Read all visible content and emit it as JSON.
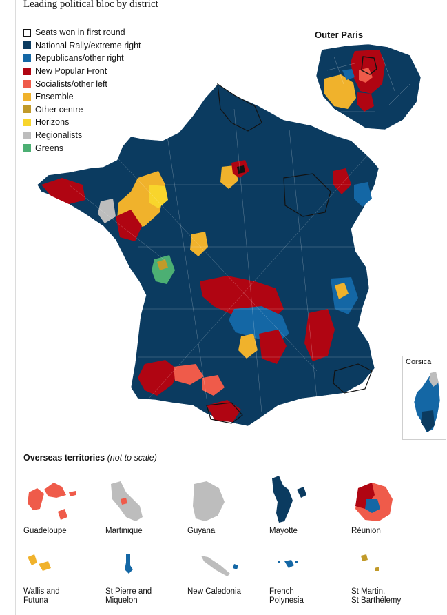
{
  "title": "Leading political bloc by district",
  "colors": {
    "first_round": "#ffffff",
    "national_rally": "#0b3b60",
    "republicans": "#1467a5",
    "new_popular_front": "#b00512",
    "socialists": "#ef5b4a",
    "ensemble": "#f0b22c",
    "other_centre": "#c19a2a",
    "horizons": "#f8d52c",
    "regionalists": "#bdbdbd",
    "greens": "#4caf73",
    "border": "#121212"
  },
  "legend": [
    {
      "label": "Seats won in first round",
      "color": "#ffffff",
      "outline": true
    },
    {
      "label": "National Rally/extreme right",
      "color": "#0b3b60"
    },
    {
      "label": "Republicans/other right",
      "color": "#1467a5"
    },
    {
      "label": "New Popular Front",
      "color": "#b00512"
    },
    {
      "label": "Socialists/other left",
      "color": "#ef5b4a"
    },
    {
      "label": "Ensemble",
      "color": "#f0b22c"
    },
    {
      "label": "Other centre",
      "color": "#c19a2a"
    },
    {
      "label": "Horizons",
      "color": "#f8d52c"
    },
    {
      "label": "Regionalists",
      "color": "#bdbdbd"
    },
    {
      "label": "Greens",
      "color": "#4caf73"
    }
  ],
  "outer_paris_title": "Outer Paris",
  "corsica_label": "Corsica",
  "overseas": {
    "title": "Overseas territories",
    "note": "(not to scale)",
    "territories": [
      {
        "name": "Guadeloupe",
        "color": "#ef5b4a"
      },
      {
        "name": "Martinique",
        "color": "#bdbdbd"
      },
      {
        "name": "Guyana",
        "color": "#bdbdbd"
      },
      {
        "name": "Mayotte",
        "color": "#0b3b60"
      },
      {
        "name": "Réunion",
        "color": "#ef5b4a"
      },
      {
        "name": "Wallis and\nFutuna",
        "color": "#f0b22c"
      },
      {
        "name": "St Pierre and\nMiquelon",
        "color": "#1467a5"
      },
      {
        "name": "New Caledonia",
        "color": "#bdbdbd"
      },
      {
        "name": "French\nPolynesia",
        "color": "#1467a5"
      },
      {
        "name": "St Martin,\nSt Barthélemy",
        "color": "#c19a2a"
      }
    ]
  }
}
